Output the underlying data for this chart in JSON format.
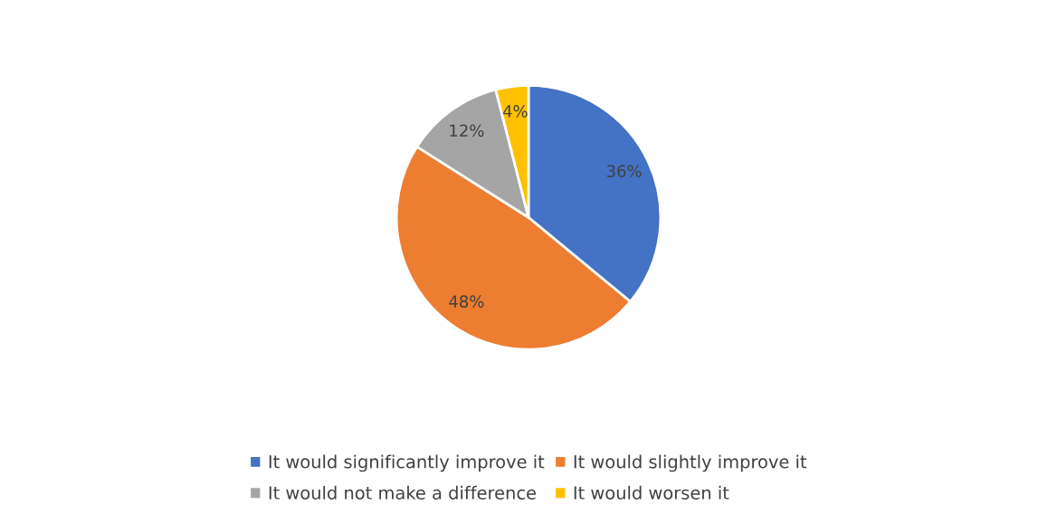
{
  "chart_data": {
    "type": "pie",
    "categories": [
      "It would significantly improve it",
      "It would slightly improve it",
      "It would not make a difference",
      "It would worsen it"
    ],
    "values": [
      36,
      48,
      12,
      4
    ],
    "colors": [
      "#4472c4",
      "#ed7d31",
      "#a5a5a5",
      "#ffc000"
    ],
    "value_labels": [
      "36%",
      "48%",
      "12%",
      "4%"
    ],
    "legend": "bottom"
  }
}
